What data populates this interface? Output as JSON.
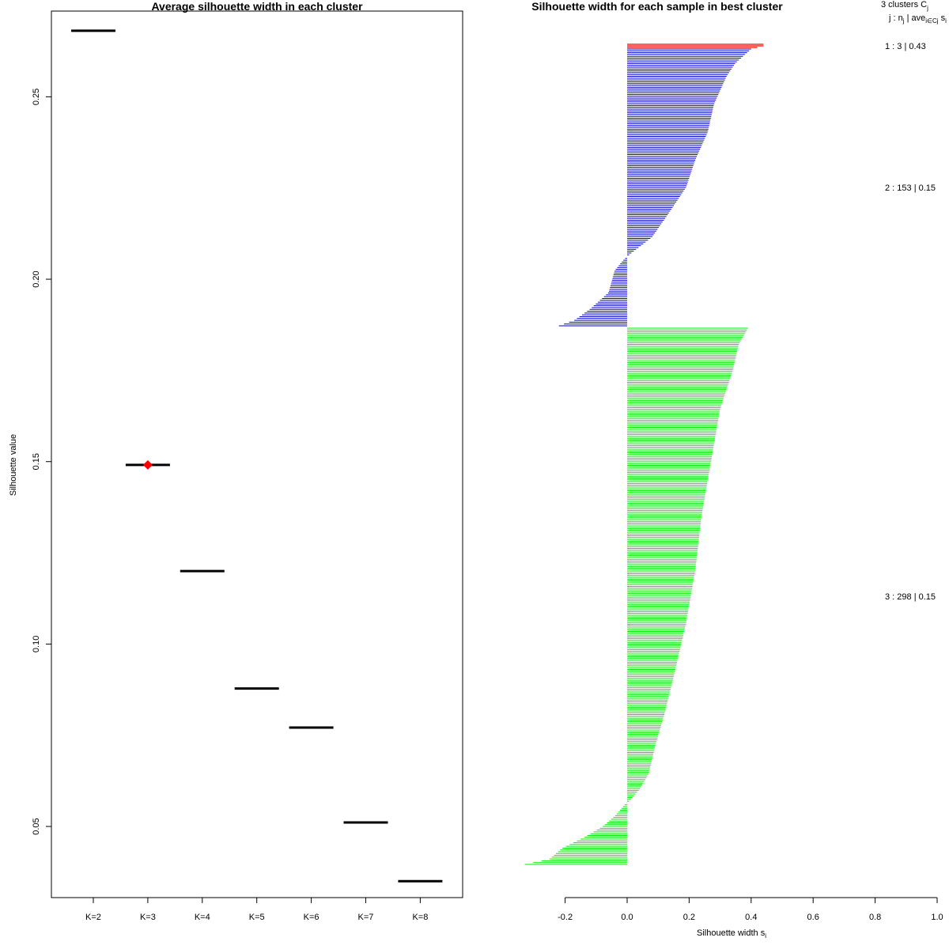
{
  "chart_data": [
    {
      "type": "scatter",
      "title": "Average silhouette width in each cluster",
      "ylabel": "Silhouette value",
      "xlabel": "",
      "categories": [
        "K=2",
        "K=3",
        "K=4",
        "K=5",
        "K=6",
        "K=7",
        "K=8"
      ],
      "values": [
        0.2681,
        0.1491,
        0.12,
        0.0878,
        0.0771,
        0.0511,
        0.035
      ],
      "best_k": "K=3",
      "best_marker_color": "#ff0000",
      "y_ticks": [
        "0.05",
        "0.10",
        "0.15",
        "0.20",
        "0.25"
      ],
      "ylim": [
        0.0305,
        0.2735
      ]
    },
    {
      "type": "bar",
      "title": "Silhouette width for each sample in best cluster",
      "xlabel_main": "Silhouette width s",
      "xlabel_sub": "i",
      "x_ticks": [
        "-0.2",
        "0.0",
        "0.2",
        "0.4",
        "0.6",
        "0.8",
        "1.0"
      ],
      "xlim": [
        -0.2,
        1.0
      ],
      "header_line1_main": "3  clusters  C",
      "header_line1_sub": "j",
      "header_line2_a": "j :  n",
      "header_line2_a_sub": "j",
      "header_line2_b": " | ave",
      "header_line2_b_sub": "i∈Cj",
      "header_line2_c": "  s",
      "header_line2_c_sub": "i",
      "clusters": [
        {
          "id": 1,
          "n": 3,
          "avg": "0.43",
          "label": "1 :   3  |  0.43",
          "color": "#ff0000",
          "widths": [
            0.44,
            0.44,
            0.42
          ]
        },
        {
          "id": 2,
          "n": 153,
          "avg": "0.15",
          "label": "2 :  153  |  0.15",
          "color": "#0000cd",
          "profile": [
            [
              0,
              0.4
            ],
            [
              0.05,
              0.35
            ],
            [
              0.1,
              0.32
            ],
            [
              0.2,
              0.28
            ],
            [
              0.3,
              0.26
            ],
            [
              0.4,
              0.22
            ],
            [
              0.5,
              0.19
            ],
            [
              0.6,
              0.13
            ],
            [
              0.68,
              0.08
            ],
            [
              0.74,
              0.01
            ],
            [
              0.76,
              -0.01
            ],
            [
              0.8,
              -0.04
            ],
            [
              0.88,
              -0.06
            ],
            [
              0.94,
              -0.12
            ],
            [
              0.98,
              -0.17
            ],
            [
              1.0,
              -0.22
            ]
          ]
        },
        {
          "id": 3,
          "n": 298,
          "avg": "0.15",
          "label": "3 :  298  |  0.15",
          "color": "#00ee00",
          "profile": [
            [
              0,
              0.39
            ],
            [
              0.03,
              0.36
            ],
            [
              0.08,
              0.34
            ],
            [
              0.15,
              0.3
            ],
            [
              0.25,
              0.27
            ],
            [
              0.35,
              0.24
            ],
            [
              0.45,
              0.22
            ],
            [
              0.55,
              0.19
            ],
            [
              0.65,
              0.15
            ],
            [
              0.72,
              0.12
            ],
            [
              0.78,
              0.09
            ],
            [
              0.83,
              0.07
            ],
            [
              0.86,
              0.04
            ],
            [
              0.88,
              0.01
            ],
            [
              0.89,
              -0.01
            ],
            [
              0.91,
              -0.04
            ],
            [
              0.93,
              -0.08
            ],
            [
              0.95,
              -0.14
            ],
            [
              0.97,
              -0.21
            ],
            [
              0.99,
              -0.25
            ],
            [
              1.0,
              -0.33
            ]
          ]
        }
      ]
    }
  ]
}
